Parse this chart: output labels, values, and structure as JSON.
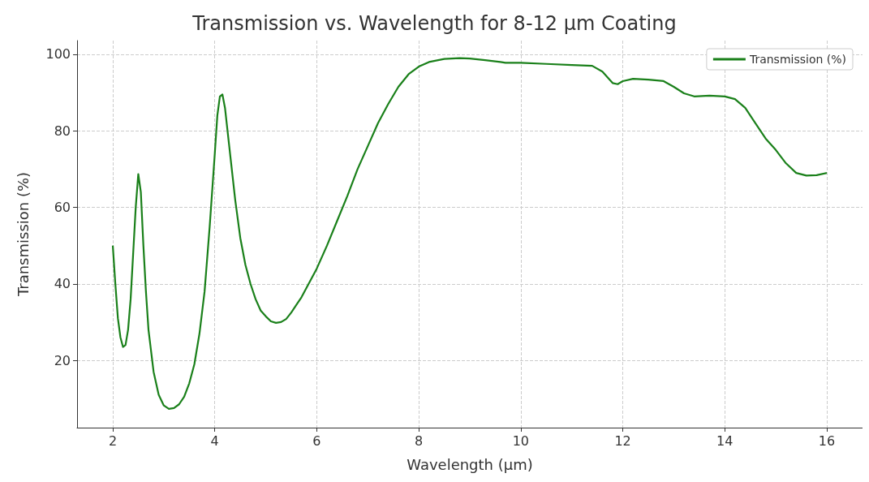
{
  "chart_data": {
    "type": "line",
    "title": "Transmission vs. Wavelength for 8-12 µm Coating",
    "xlabel": "Wavelength (µm)",
    "ylabel": "Transmission (%)",
    "xlim": [
      1.3,
      16.7
    ],
    "xticks": [
      2,
      4,
      6,
      8,
      10,
      12,
      14,
      16
    ],
    "ylim": [
      2.4,
      103.6
    ],
    "yticks": [
      20,
      40,
      60,
      80,
      100
    ],
    "grid": true,
    "legend": "top right",
    "line_style": "solid",
    "marker": "none",
    "series": [
      {
        "name": "Transmission (%)",
        "color": "#1a801a",
        "x": [
          2.0,
          2.05,
          2.1,
          2.15,
          2.2,
          2.25,
          2.3,
          2.35,
          2.4,
          2.45,
          2.5,
          2.55,
          2.6,
          2.65,
          2.7,
          2.8,
          2.9,
          3.0,
          3.1,
          3.2,
          3.3,
          3.4,
          3.5,
          3.6,
          3.7,
          3.8,
          3.9,
          4.0,
          4.05,
          4.1,
          4.15,
          4.2,
          4.3,
          4.4,
          4.5,
          4.6,
          4.7,
          4.8,
          4.9,
          5.0,
          5.1,
          5.2,
          5.3,
          5.4,
          5.5,
          5.6,
          5.7,
          5.8,
          6.0,
          6.2,
          6.4,
          6.6,
          6.8,
          7.0,
          7.2,
          7.4,
          7.6,
          7.8,
          8.0,
          8.2,
          8.5,
          8.8,
          9.0,
          9.3,
          9.6,
          9.7,
          10.0,
          10.5,
          11.0,
          11.4,
          11.6,
          11.8,
          11.9,
          12.0,
          12.2,
          12.5,
          12.8,
          13.0,
          13.2,
          13.4,
          13.7,
          14.0,
          14.2,
          14.4,
          14.6,
          14.8,
          15.0,
          15.2,
          15.4,
          15.6,
          15.8,
          16.0
        ],
        "values": [
          50,
          40,
          31,
          26,
          23.5,
          24,
          28,
          36,
          48,
          60,
          68.7,
          64,
          50,
          38,
          28,
          17,
          11,
          8.2,
          7.3,
          7.5,
          8.5,
          10.5,
          14,
          19,
          27,
          38,
          55,
          74,
          84,
          89,
          89.5,
          86,
          74,
          62,
          52,
          45,
          40,
          36,
          33,
          31.5,
          30.2,
          29.8,
          30,
          30.8,
          32.5,
          34.5,
          36.5,
          39,
          44,
          50,
          56.5,
          63,
          70,
          76,
          82,
          87,
          91.5,
          94.8,
          96.8,
          98,
          98.8,
          99,
          98.9,
          98.5,
          98,
          97.8,
          97.8,
          97.5,
          97.2,
          97,
          95.5,
          92.5,
          92.2,
          93,
          93.6,
          93.4,
          93,
          91.5,
          89.8,
          89,
          89.2,
          89,
          88.3,
          86,
          82,
          78,
          75,
          71.5,
          69,
          68.3,
          68.4,
          69
        ]
      }
    ]
  }
}
